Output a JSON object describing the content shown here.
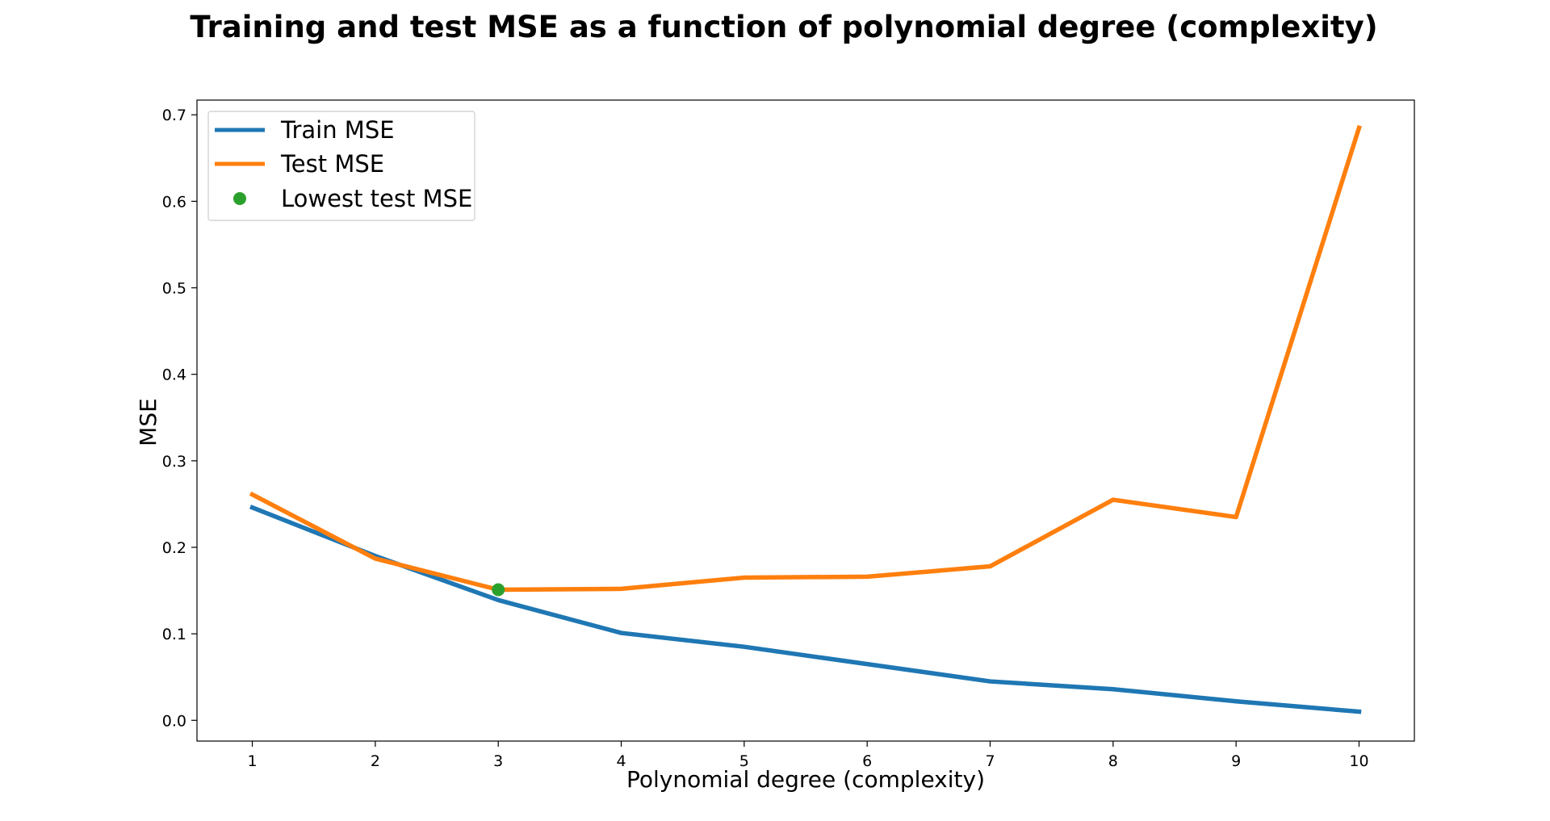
{
  "chart_data": {
    "type": "line",
    "title": "Training and test MSE as a function of polynomial degree (complexity)",
    "xlabel": "Polynomial degree (complexity)",
    "ylabel": "MSE",
    "x": [
      1,
      2,
      3,
      4,
      5,
      6,
      7,
      8,
      9,
      10
    ],
    "xticks": [
      "1",
      "2",
      "3",
      "4",
      "5",
      "6",
      "7",
      "8",
      "9",
      "10"
    ],
    "yticks": [
      "0.0",
      "0.1",
      "0.2",
      "0.3",
      "0.4",
      "0.5",
      "0.6",
      "0.7"
    ],
    "xlim": [
      0.55,
      10.45
    ],
    "ylim": [
      -0.024,
      0.717
    ],
    "grid": false,
    "legend_position": "top-left",
    "series": [
      {
        "name": "Train MSE",
        "color": "#1f77b4",
        "values": [
          0.246,
          0.19,
          0.139,
          0.101,
          0.085,
          0.065,
          0.045,
          0.036,
          0.022,
          0.01
        ]
      },
      {
        "name": "Test MSE",
        "color": "#ff7f0e",
        "values": [
          0.261,
          0.187,
          0.151,
          0.152,
          0.165,
          0.166,
          0.178,
          0.255,
          0.235,
          0.685
        ]
      }
    ],
    "highlight": {
      "name": "Lowest test MSE",
      "color": "#2ca02c",
      "x": 3,
      "y": 0.151
    }
  }
}
